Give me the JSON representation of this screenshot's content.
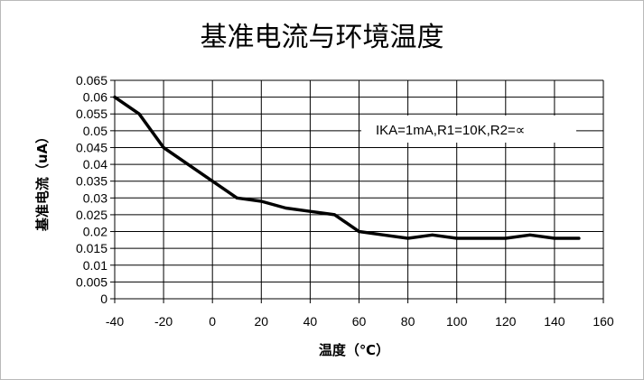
{
  "chart_data": {
    "type": "line",
    "title": "基准电流与环境温度",
    "xlabel": "温度（℃）",
    "ylabel": "基准电流（uA）",
    "annotation": "IKA=1mA,R1=10K,R2=∝",
    "xlim": [
      -40,
      160
    ],
    "ylim": [
      0,
      0.065
    ],
    "x_ticks": [
      "-40",
      "-20",
      "0",
      "20",
      "40",
      "60",
      "80",
      "100",
      "120",
      "140",
      "160"
    ],
    "y_ticks": [
      "0",
      "0.005",
      "0.01",
      "0.015",
      "0.02",
      "0.025",
      "0.03",
      "0.035",
      "0.04",
      "0.045",
      "0.05",
      "0.055",
      "0.06",
      "0.065"
    ],
    "grid": true,
    "series": [
      {
        "color": "#000000",
        "x": [
          -40,
          -30,
          -20,
          -10,
          0,
          10,
          20,
          30,
          40,
          50,
          60,
          70,
          80,
          90,
          100,
          110,
          120,
          130,
          140,
          150
        ],
        "y": [
          0.06,
          0.055,
          0.045,
          0.04,
          0.035,
          0.03,
          0.029,
          0.027,
          0.026,
          0.025,
          0.02,
          0.019,
          0.018,
          0.019,
          0.018,
          0.018,
          0.018,
          0.019,
          0.018,
          0.018
        ]
      }
    ]
  }
}
